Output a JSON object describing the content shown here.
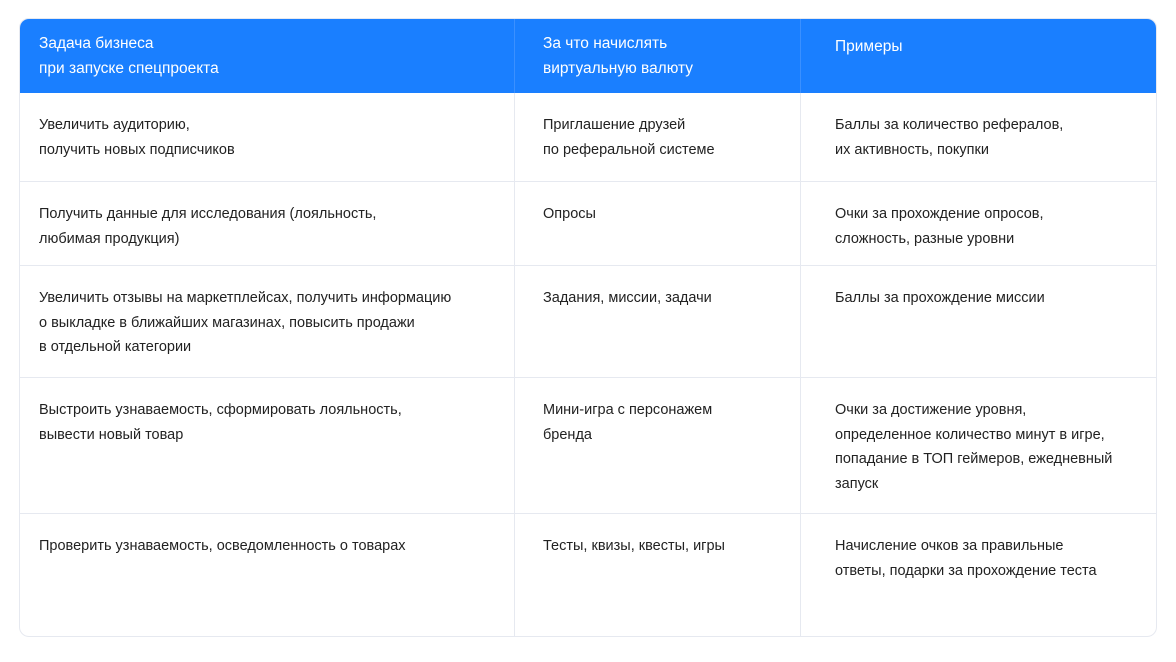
{
  "table": {
    "headers": [
      "Задача бизнеса\nпри запуске спецпроекта",
      "За что начислять\nвиртуальную валюту",
      "Примеры"
    ],
    "rows": [
      [
        "Увеличить аудиторию,\nполучить новых подписчиков",
        "Приглашение друзей\nпо реферальной системе",
        "Баллы за количество рефералов,\nих активность, покупки"
      ],
      [
        "Получить данные для исследования (лояльность,\nлюбимая продукция)",
        "Опросы",
        "Очки за прохождение опросов,\nсложность, разные уровни"
      ],
      [
        "Увеличить отзывы на маркетплейсах, получить информацию\nо выкладке в ближайших магазинах, повысить продажи\nв отдельной категории",
        "Задания, миссии, задачи",
        "Баллы за прохождение миссии"
      ],
      [
        "Выстроить узнаваемость, сформировать лояльность,\nвывести новый товар",
        "Мини-игра с персонажем\nбренда",
        "Очки за достижение уровня,\nопределенное количество минут в игре,\nпопадание в ТОП геймеров, ежедневный\nзапуск"
      ],
      [
        "Проверить узнаваемость, осведомленность о товарах",
        "Тесты, квизы, квесты, игры",
        "Начисление очков за правильные\nответы, подарки за прохождение теста"
      ]
    ]
  },
  "colors": {
    "header_bg": "#1a7fff",
    "header_text": "#ffffff",
    "border": "#e6e9f0"
  }
}
